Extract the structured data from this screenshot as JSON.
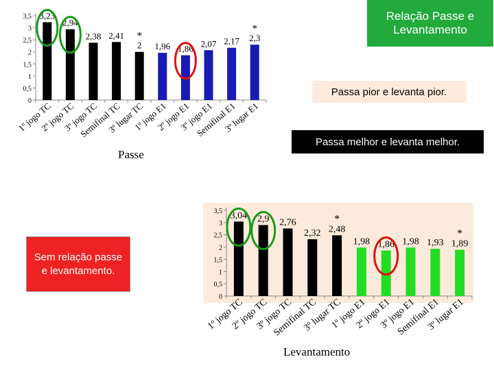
{
  "title_box": "Relação Passe e Levantamento",
  "notes": {
    "worse": "Passa pior e levanta pior.",
    "better": "Passa melhor e levanta melhor.",
    "none": "Sem relação passe e levantamento."
  },
  "chart_data": [
    {
      "type": "bar",
      "xlabel": "Passe",
      "ylim": [
        0,
        3.5
      ],
      "yticks": [
        "0",
        "0,5",
        "1",
        "1,5",
        "2",
        "2,5",
        "3",
        "3,5"
      ],
      "categories": [
        "1º jogo TC",
        "2º jogo TC",
        "3º jogo TC",
        "Semifinal TC",
        "3º lugar TC",
        "1º jogo E1",
        "2º jogo E1",
        "3º jogo E1",
        "Semifinal E1",
        "3º lugar E1"
      ],
      "values": [
        3.23,
        2.94,
        2.38,
        2.41,
        2,
        1.96,
        1.86,
        2.07,
        2.17,
        2.3
      ],
      "value_labels": [
        "3,23",
        "2,94",
        "2,38",
        "2,41",
        "2",
        "1,96",
        "1,86",
        "2,07",
        "2,17",
        "2,3"
      ],
      "bar_colors": [
        "#000000",
        "#000000",
        "#000000",
        "#000000",
        "#000000",
        "#1a1ab4",
        "#1a1ab4",
        "#1a1ab4",
        "#1a1ab4",
        "#1a1ab4"
      ],
      "stars": [
        4,
        9
      ],
      "star_label": "*",
      "highlight_green": [
        0,
        1
      ],
      "highlight_red": [
        6
      ],
      "grid": false
    },
    {
      "type": "bar",
      "xlabel": "Levantamento",
      "ylim": [
        0,
        3.5
      ],
      "yticks": [
        "0",
        "0,5",
        "1",
        "1,5",
        "2",
        "2,5",
        "3",
        "3,5"
      ],
      "categories": [
        "1º jogo TC",
        "2º jogo TC",
        "3º jogo TC",
        "Semifinal TC",
        "3º lugar TC",
        "1º jogo E1",
        "2º jogo E1",
        "3º jogo E1",
        "Semifinal E1",
        "3º lugar E1"
      ],
      "values": [
        3.04,
        2.9,
        2.76,
        2.32,
        2.48,
        1.98,
        1.86,
        1.98,
        1.93,
        1.89
      ],
      "value_labels": [
        "3,04",
        "2,9",
        "2,76",
        "2,32",
        "2,48",
        "1,98",
        "1,86",
        "1,98",
        "1,93",
        "1,89"
      ],
      "bar_colors": [
        "#000000",
        "#000000",
        "#000000",
        "#000000",
        "#000000",
        "#22dd22",
        "#22dd22",
        "#22dd22",
        "#22dd22",
        "#22dd22"
      ],
      "stars": [
        4,
        9
      ],
      "star_label": "*",
      "highlight_green": [
        0,
        1
      ],
      "highlight_red": [
        6
      ],
      "background": "#fcebdc",
      "grid": false
    }
  ]
}
